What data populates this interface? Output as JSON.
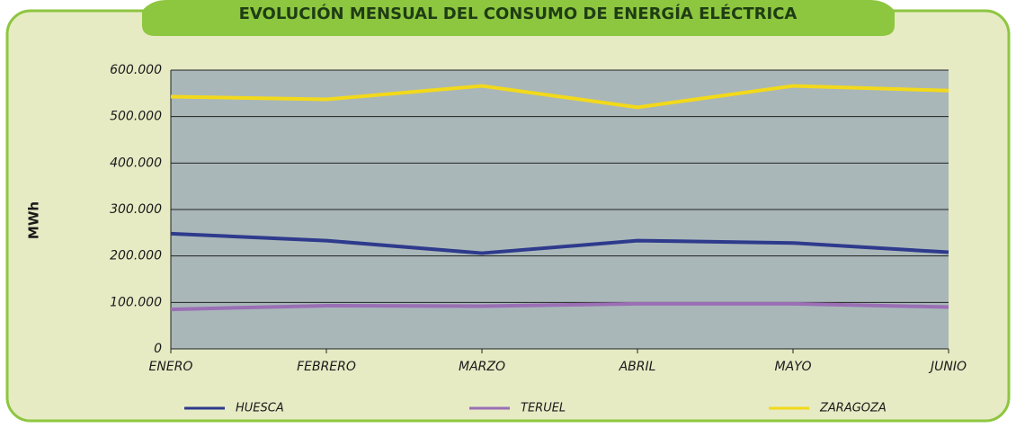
{
  "chart_data": {
    "type": "line",
    "title": "EVOLUCIÓN MENSUAL DEL CONSUMO DE ENERGÍA ELÉCTRICA",
    "y_label": "MWh",
    "categories": [
      "ENERO",
      "FEBRERO",
      "MARZO",
      "ABRIL",
      "MAYO",
      "JUNIO"
    ],
    "series": [
      {
        "name": "HUESCA",
        "color": "#2e3a8c",
        "values": [
          248000,
          233000,
          206000,
          233000,
          228000,
          208000
        ]
      },
      {
        "name": "TERUEL",
        "color": "#9b6fb5",
        "values": [
          85000,
          93000,
          92000,
          97000,
          97000,
          90000
        ]
      },
      {
        "name": "ZARAGOZA",
        "color": "#f2d91a",
        "values": [
          543000,
          537000,
          566000,
          520000,
          566000,
          556000
        ]
      }
    ],
    "ylim": [
      0,
      600000
    ],
    "yticks": [
      0,
      {
        "value": 100000,
        "label": "100.000"
      },
      {
        "value": 200000,
        "label": "200.000"
      },
      {
        "value": 300000,
        "label": "300.000"
      },
      {
        "value": 400000,
        "label": "400.000"
      },
      {
        "value": 500000,
        "label": "500.000"
      },
      {
        "value": 600000,
        "label": "600.000"
      }
    ],
    "grid": true,
    "legend": "bottom"
  }
}
